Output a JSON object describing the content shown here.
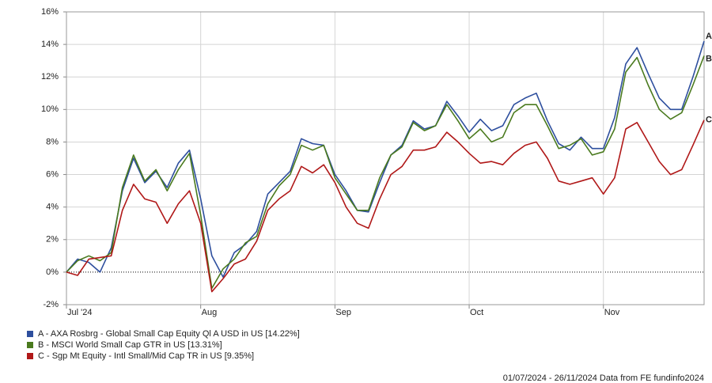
{
  "chart_data": {
    "type": "line",
    "categories": [
      "Jul '24",
      null,
      null,
      null,
      null,
      null,
      null,
      null,
      null,
      null,
      null,
      null,
      "Aug",
      null,
      null,
      null,
      null,
      null,
      null,
      null,
      null,
      null,
      null,
      null,
      "Sep",
      null,
      null,
      null,
      null,
      null,
      null,
      null,
      null,
      null,
      null,
      null,
      "Oct",
      null,
      null,
      null,
      null,
      null,
      null,
      null,
      null,
      null,
      null,
      null,
      "Nov",
      null,
      null,
      null,
      null,
      null,
      null,
      null,
      null,
      null
    ],
    "series": [
      {
        "name": "A - AXA Rosbrg - Global Small Cap Equity Ql A USD in US [14.22%]",
        "end_label": "A",
        "color": "#2e4f9e",
        "values": [
          0,
          0.8,
          0.6,
          0.0,
          1.5,
          5.0,
          7.0,
          5.5,
          6.2,
          5.2,
          6.7,
          7.5,
          4.5,
          1.0,
          -0.3,
          1.2,
          1.7,
          2.5,
          4.8,
          5.5,
          6.2,
          8.2,
          7.9,
          7.8,
          6.0,
          5.0,
          3.8,
          3.7,
          5.5,
          7.2,
          7.8,
          9.3,
          8.8,
          9.0,
          10.5,
          9.6,
          8.6,
          9.4,
          8.7,
          9.0,
          10.3,
          10.7,
          11.0,
          9.3,
          7.9,
          7.5,
          8.3,
          7.6,
          7.6,
          9.5,
          12.8,
          13.8,
          12.2,
          10.7,
          10.0,
          10.0,
          12.0,
          14.2
        ]
      },
      {
        "name": "B - MSCI World Small Cap GTR in US [13.31%]",
        "end_label": "B",
        "color": "#4a7a1e",
        "values": [
          0,
          0.7,
          1.0,
          0.7,
          1.2,
          5.2,
          7.2,
          5.6,
          6.3,
          5.0,
          6.3,
          7.3,
          3.5,
          -1.0,
          0.2,
          0.8,
          1.8,
          2.2,
          4.2,
          5.3,
          6.0,
          7.8,
          7.5,
          7.8,
          5.8,
          4.8,
          3.8,
          3.8,
          5.8,
          7.2,
          7.7,
          9.2,
          8.7,
          9.0,
          10.3,
          9.3,
          8.2,
          8.8,
          8.0,
          8.3,
          9.8,
          10.3,
          10.3,
          9.0,
          7.6,
          7.8,
          8.2,
          7.2,
          7.4,
          8.8,
          12.3,
          13.2,
          11.5,
          10.0,
          9.4,
          9.8,
          11.5,
          13.3
        ]
      },
      {
        "name": "C - Sgp Mt Equity - Intl Small/Mid Cap TR in US [9.35%]",
        "end_label": "C",
        "color": "#b01818",
        "values": [
          0,
          -0.2,
          0.8,
          0.9,
          1.0,
          3.8,
          5.4,
          4.5,
          4.3,
          3.0,
          4.2,
          5.0,
          3.0,
          -1.2,
          -0.4,
          0.5,
          0.8,
          1.9,
          3.8,
          4.5,
          5.0,
          6.5,
          6.1,
          6.6,
          5.5,
          4.0,
          3.0,
          2.7,
          4.5,
          6.0,
          6.5,
          7.5,
          7.5,
          7.7,
          8.6,
          8.0,
          7.3,
          6.7,
          6.8,
          6.6,
          7.3,
          7.8,
          8.0,
          7.0,
          5.6,
          5.4,
          5.6,
          5.8,
          4.8,
          5.8,
          8.8,
          9.2,
          8.0,
          6.8,
          6.0,
          6.3,
          7.8,
          9.35
        ]
      }
    ],
    "ylim": [
      -2,
      16
    ],
    "yticks": [
      {
        "value": -2,
        "label": "-2%"
      },
      {
        "value": 0,
        "label": "0%"
      },
      {
        "value": 2,
        "label": "2%"
      },
      {
        "value": 4,
        "label": "4%"
      },
      {
        "value": 6,
        "label": "6%"
      },
      {
        "value": 8,
        "label": "8%"
      },
      {
        "value": 10,
        "label": "10%"
      },
      {
        "value": 12,
        "label": "12%"
      },
      {
        "value": 14,
        "label": "14%"
      },
      {
        "value": 16,
        "label": "16%"
      }
    ],
    "grid": true,
    "footer": "01/07/2024 - 26/11/2024 Data from FE fundinfo2024"
  }
}
